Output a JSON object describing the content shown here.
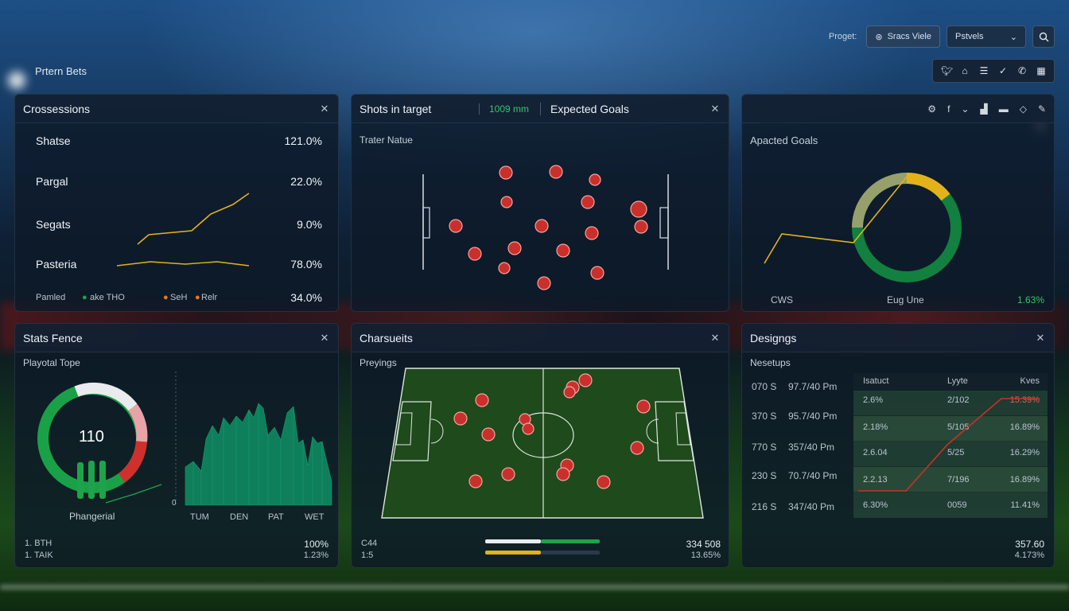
{
  "app": {
    "title": "Prtern Bets"
  },
  "topbar": {
    "label": "Proget:",
    "search_button": "Sracs Viele",
    "select_value": "Pstvels",
    "search_icon": "search-icon"
  },
  "social_icons": [
    "twitter-icon",
    "home-icon",
    "stack-icon",
    "twitter-icon",
    "phone-icon",
    "calendar-icon"
  ],
  "panel1": {
    "title": "Crossessions",
    "rows": [
      {
        "label": "Shatse",
        "value": "121.0%"
      },
      {
        "label": "Pargal",
        "value": "22.0%"
      },
      {
        "label": "Segats",
        "value": "9.0%"
      },
      {
        "label": "Pasteria",
        "value": "78.0%"
      }
    ],
    "footer": {
      "label": "Pamled",
      "legend1": "ake THO",
      "legend2": "SeH",
      "legend3": "Relr",
      "value": "34.0%"
    }
  },
  "panel2": {
    "title": "Shots in target",
    "badge": "1009 mm",
    "title2": "Expected Goals",
    "subtitle": "Trater Natue"
  },
  "panel3": {
    "subtitle": "Apacted Goals",
    "footer_left": "CWS",
    "footer_mid": "Eug Une",
    "footer_right": "1.63%"
  },
  "panel4": {
    "title": "Stats Fence",
    "subtitle": "Playotal Tope",
    "donut_value": "110",
    "donut_label": "Phangerial",
    "bar_labels": [
      "TUM",
      "DEN",
      "PAT",
      "WET"
    ],
    "axis_zero": "0",
    "footer_left1": "1. BTH",
    "footer_left2": "1. TAIK",
    "footer_right1": "100%",
    "footer_right2": "1.23%"
  },
  "panel5": {
    "title": "Charsueits",
    "subtitle": "Preyings",
    "footer_left1": "C44",
    "footer_left2": "1:5",
    "footer_right1": "334 508",
    "footer_right2": "13.65%"
  },
  "panel6": {
    "title": "Designgs",
    "subtitle": "Nesetups",
    "times": [
      {
        "a": "070 S",
        "b": "97.7/40 Pm"
      },
      {
        "a": "370 S",
        "b": "95.7/40 Pm"
      },
      {
        "a": "770 S",
        "b": "357/40 Pm"
      },
      {
        "a": "230 S",
        "b": "70.7/40 Pm"
      },
      {
        "a": "216 S",
        "b": "347/40 Pm"
      }
    ],
    "table_headers": [
      "Isatuct",
      "Lyyte",
      "Kves"
    ],
    "table_rows": [
      [
        "2.6%",
        "2/102",
        "15.39%"
      ],
      [
        "2.18%",
        "5/105",
        "16.89%"
      ],
      [
        "2.6.04",
        "5/25",
        "16.29%"
      ],
      [
        "2.2.13",
        "7/196",
        "16.89%"
      ],
      [
        "6.30%",
        "0059",
        "11.41%"
      ]
    ],
    "footer_right1": "357.60",
    "footer_right2": "4.173%"
  },
  "colors": {
    "accent_green": "#1fa34a",
    "accent_yellow": "#e3b21a",
    "dot_red": "#c9302c"
  }
}
